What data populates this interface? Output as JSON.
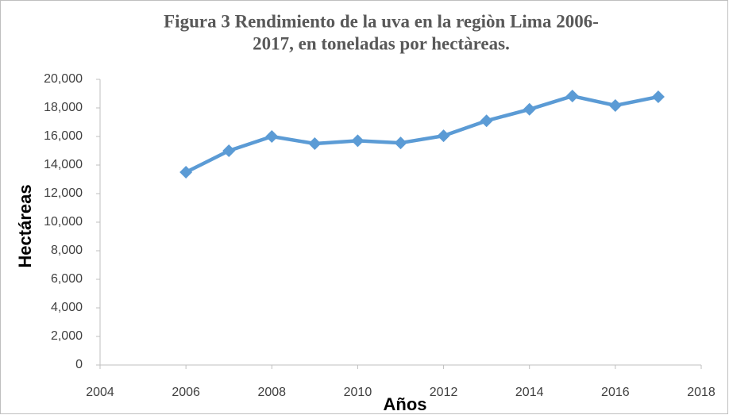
{
  "chart_data": {
    "type": "line",
    "title": [
      "Figura 3 Rendimiento de la uva en la regiòn Lima 2006-",
      "2017, en toneladas por hectàreas."
    ],
    "xlabel": "Años",
    "ylabel": "Hectáreas",
    "x": [
      2006,
      2007,
      2008,
      2009,
      2010,
      2011,
      2012,
      2013,
      2014,
      2015,
      2016,
      2017
    ],
    "series": [
      {
        "name": "Rendimiento",
        "color": "#5b9bd5",
        "values": [
          13500,
          15000,
          16000,
          15500,
          15700,
          15550,
          16050,
          17100,
          17900,
          18830,
          18170,
          18780
        ]
      }
    ],
    "xlim": [
      2004,
      2018
    ],
    "xticks": [
      2004,
      2006,
      2008,
      2010,
      2012,
      2014,
      2016,
      2018
    ],
    "ylim": [
      0,
      20000
    ],
    "yticks": [
      0,
      {
        "value": 2000,
        "label": "2,000"
      },
      {
        "value": 4000,
        "label": "4,000"
      },
      {
        "value": 6000,
        "label": "6,000"
      },
      {
        "value": 8000,
        "label": "8,000"
      },
      {
        "value": 10000,
        "label": "10,000"
      },
      {
        "value": 12000,
        "label": "12,000"
      },
      {
        "value": 14000,
        "label": "14,000"
      },
      {
        "value": 16000,
        "label": "16,000"
      },
      {
        "value": 18000,
        "label": "18,000"
      },
      {
        "value": 20000,
        "label": "20,000"
      }
    ],
    "grid": false
  }
}
